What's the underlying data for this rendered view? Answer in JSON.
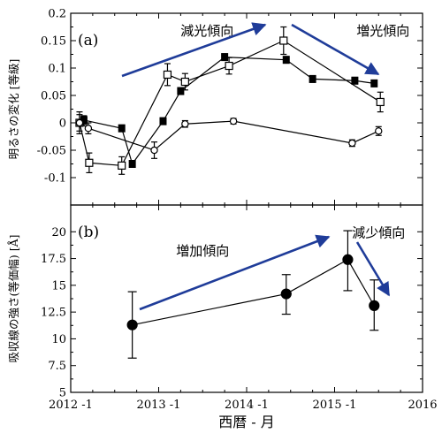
{
  "figure": {
    "xlabel": "西暦 - 月",
    "x_ticks": [
      {
        "value": 2012.0,
        "label": "2012 -1"
      },
      {
        "value": 2013.0,
        "label": "2013 -1"
      },
      {
        "value": 2014.0,
        "label": "2014 -1"
      },
      {
        "value": 2015.0,
        "label": "2015 -1"
      },
      {
        "value": 2016.0,
        "label": "2016"
      }
    ],
    "xlim": [
      2012.0,
      2016.0
    ]
  },
  "chart_data": [
    {
      "type": "scatter",
      "panel_label": "(a)",
      "ylabel": "明るさの変化 [等級]",
      "ylim": [
        -0.15,
        0.2
      ],
      "yticks": [
        -0.1,
        -0.05,
        0,
        0.05,
        0.1,
        0.15,
        0.2
      ],
      "ytick_labels": [
        "-0.1",
        "-0.05",
        "0",
        "0.05",
        "0.1",
        "0.15",
        "0.2"
      ],
      "annotations": [
        {
          "text": "減光傾向",
          "x": 2013.55,
          "y": 0.16
        },
        {
          "text": "増光傾向",
          "x": 2015.55,
          "y": 0.16
        }
      ],
      "arrow_color": "#1f3c99",
      "series": [
        {
          "marker": "square-open",
          "x": [
            2012.1,
            2012.21,
            2012.58,
            2013.1,
            2013.3,
            2013.8,
            2014.42,
            2015.52
          ],
          "y": [
            0.0,
            -0.073,
            -0.078,
            0.088,
            0.075,
            0.104,
            0.15,
            0.038
          ],
          "err": [
            0.02,
            0.018,
            0.016,
            0.02,
            0.015,
            0.015,
            0.025,
            0.018
          ]
        },
        {
          "marker": "square-filled",
          "x": [
            2012.15,
            2012.58,
            2012.7,
            2013.05,
            2013.25,
            2013.75,
            2014.45,
            2014.75,
            2015.23,
            2015.45
          ],
          "y": [
            0.005,
            -0.01,
            -0.075,
            0.003,
            0.058,
            0.12,
            0.115,
            0.08,
            0.077,
            0.072
          ],
          "err": [
            0.008,
            0.006,
            0.006,
            0.006,
            0.006,
            0.006,
            0.006,
            0.006,
            0.006,
            0.006
          ]
        },
        {
          "marker": "circle-open",
          "x": [
            2012.1,
            2012.2,
            2012.95,
            2013.3,
            2013.85,
            2015.2,
            2015.5
          ],
          "y": [
            0.0,
            -0.01,
            -0.05,
            -0.002,
            0.003,
            -0.037,
            -0.015
          ],
          "err": [
            0.015,
            0.01,
            0.015,
            0.006,
            0.005,
            0.006,
            0.008
          ]
        }
      ]
    },
    {
      "type": "scatter",
      "panel_label": "(b)",
      "ylabel": "吸収線の強さ(等価幅) [Å]",
      "ylim": [
        5,
        22.5
      ],
      "yticks": [
        5,
        7.5,
        10,
        12.5,
        15,
        17.5,
        20
      ],
      "ytick_labels": [
        "5",
        "7.5",
        "10",
        "12.5",
        "15",
        "17.5",
        "20"
      ],
      "annotations": [
        {
          "text": "増加傾向",
          "x": 2013.5,
          "y": 17.8
        },
        {
          "text": "減少傾向",
          "x": 2015.5,
          "y": 19.5
        }
      ],
      "arrow_color": "#1f3c99",
      "series": [
        {
          "marker": "circle-filled",
          "x": [
            2012.7,
            2014.45,
            2015.15,
            2015.45
          ],
          "y": [
            11.3,
            14.2,
            17.4,
            13.1
          ],
          "err_lo": [
            3.1,
            1.9,
            2.9,
            2.3
          ],
          "err_hi": [
            3.1,
            1.8,
            2.7,
            2.4
          ]
        }
      ]
    }
  ]
}
